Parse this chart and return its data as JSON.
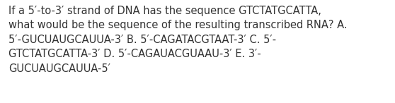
{
  "text": "If a 5′-to-3′ strand of DNA has the sequence GTCTATGCATTA,\nwhat would be the sequence of the resulting transcribed RNA? A.\n5′-GUCUAUGCAUUA-3′ B. 5′-CAGATACGTAAT-3′ C. 5′-\nGTCTATGCATTA-3′ D. 5′-CAGAUACGUAAU-3′ E. 3′-\nGUCUAUGCAUUA-5′",
  "background_color": "#ffffff",
  "text_color": "#333333",
  "font_size": 10.5,
  "fig_width": 5.58,
  "fig_height": 1.46,
  "dpi": 100
}
